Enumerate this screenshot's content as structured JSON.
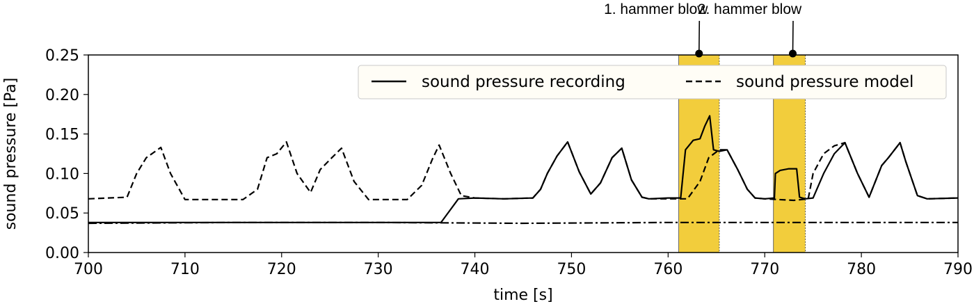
{
  "chart_data": {
    "type": "line",
    "xlabel": "time [s]",
    "ylabel": "sound pressure [Pa]",
    "xlim": [
      700,
      790
    ],
    "ylim": [
      0.0,
      0.25
    ],
    "xticks": [
      "700",
      "710",
      "720",
      "730",
      "740",
      "750",
      "760",
      "770",
      "780",
      "790"
    ],
    "yticks": [
      "0.00",
      "0.05",
      "0.10",
      "0.15",
      "0.20",
      "0.25"
    ],
    "grid": false,
    "legend": "top-right",
    "highlight_color": "#f2cd3c",
    "highlights": [
      {
        "label": "1. hammer blow",
        "x_start": 761.1,
        "x_end": 765.3,
        "marker_x": 763.2
      },
      {
        "label": "2. hammer blow",
        "x_start": 770.9,
        "x_end": 774.2,
        "marker_x": 772.9
      }
    ],
    "series": [
      {
        "name": "sound pressure recording",
        "style": "solid",
        "x": [
          700,
          710,
          720,
          730,
          736.5,
          738.3,
          740,
          743,
          746,
          746.8,
          747.5,
          748.5,
          749.6,
          750.8,
          752,
          753,
          754.2,
          755.2,
          756.2,
          757.3,
          758,
          760,
          761.3,
          761.8,
          762.6,
          763.3,
          763.8,
          764.3,
          764.7,
          765.3,
          766.1,
          767.2,
          768.2,
          769,
          770,
          771,
          771.1,
          771.6,
          772.5,
          773.3,
          773.6,
          774.2,
          775,
          776.1,
          777.2,
          778.3,
          779.6,
          780.8,
          782.1,
          782.8,
          784,
          784.6,
          785.8,
          786.8,
          790
        ],
        "y": [
          0.038,
          0.038,
          0.038,
          0.038,
          0.038,
          0.068,
          0.069,
          0.068,
          0.069,
          0.08,
          0.1,
          0.122,
          0.14,
          0.102,
          0.074,
          0.088,
          0.12,
          0.132,
          0.092,
          0.07,
          0.068,
          0.069,
          0.069,
          0.13,
          0.142,
          0.144,
          0.16,
          0.173,
          0.13,
          0.128,
          0.13,
          0.105,
          0.08,
          0.069,
          0.068,
          0.069,
          0.1,
          0.104,
          0.106,
          0.106,
          0.07,
          0.068,
          0.069,
          0.1,
          0.125,
          0.139,
          0.1,
          0.07,
          0.11,
          0.12,
          0.139,
          0.115,
          0.072,
          0.068,
          0.069
        ]
      },
      {
        "name": "sound pressure model",
        "style": "dashed",
        "x": [
          700,
          704,
          705,
          706,
          707.5,
          708.5,
          710,
          712,
          716,
          717.5,
          718.5,
          719.5,
          720.5,
          721.6,
          723,
          724,
          725.2,
          726.2,
          727.5,
          729,
          733,
          734.5,
          735.6,
          736.3,
          737.5,
          738.6,
          740,
          743,
          746,
          746.8,
          747.5,
          748.5,
          749.6,
          750.8,
          752,
          753,
          754.2,
          755.2,
          756.2,
          757.3,
          758,
          761,
          762,
          763.3,
          764.2,
          765.3,
          766.1,
          767.2,
          768.2,
          769,
          770,
          773,
          774.5,
          775,
          776.1,
          777.2,
          778.3,
          779.6,
          780.8,
          782.1,
          782.8,
          784,
          784.6,
          785.8,
          786.8,
          790
        ],
        "y": [
          0.068,
          0.07,
          0.1,
          0.12,
          0.133,
          0.1,
          0.067,
          0.067,
          0.067,
          0.08,
          0.12,
          0.125,
          0.14,
          0.1,
          0.076,
          0.105,
          0.12,
          0.132,
          0.09,
          0.067,
          0.067,
          0.085,
          0.118,
          0.136,
          0.1,
          0.072,
          0.069,
          0.068,
          0.069,
          0.08,
          0.1,
          0.122,
          0.14,
          0.102,
          0.074,
          0.088,
          0.12,
          0.132,
          0.092,
          0.07,
          0.068,
          0.068,
          0.068,
          0.09,
          0.12,
          0.13,
          0.13,
          0.105,
          0.08,
          0.069,
          0.068,
          0.066,
          0.068,
          0.1,
          0.125,
          0.135,
          0.139,
          0.1,
          0.07,
          0.11,
          0.12,
          0.139,
          0.115,
          0.072,
          0.068,
          0.069
        ]
      },
      {
        "name": "",
        "style": "dashdot",
        "x": [
          700,
          715,
          730,
          745,
          760,
          775,
          790
        ],
        "y": [
          0.037,
          0.038,
          0.038,
          0.037,
          0.038,
          0.038,
          0.038
        ]
      }
    ]
  }
}
